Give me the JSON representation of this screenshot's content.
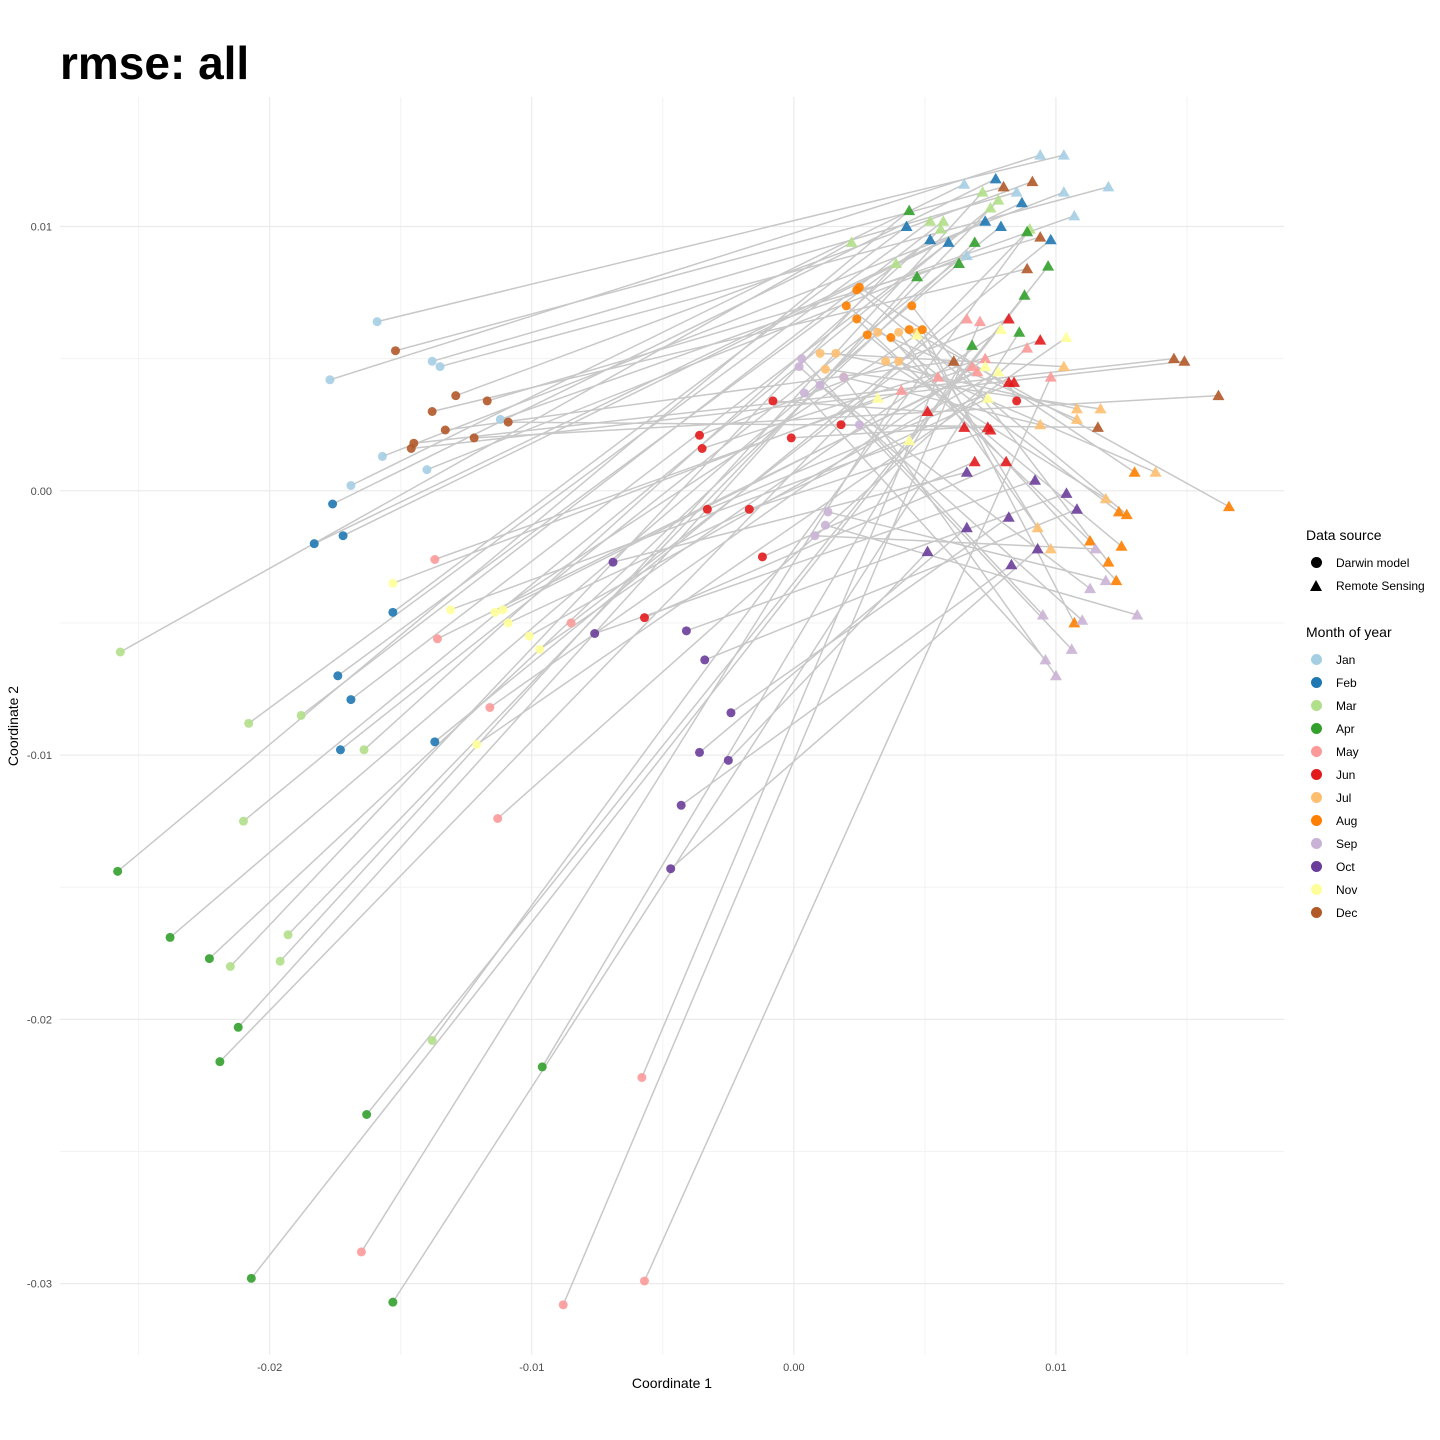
{
  "chart_data": {
    "type": "scatter",
    "title": "rmse: all",
    "xlabel": "Coordinate 1",
    "ylabel": "Coordinate 2",
    "xlim": [
      -0.028,
      0.0187
    ],
    "ylim": [
      -0.0327,
      0.0149
    ],
    "x_ticks": [
      -0.02,
      -0.01,
      0.0,
      0.01
    ],
    "x_tick_labels": [
      "-0.02",
      "-0.01",
      "0.00",
      "0.01"
    ],
    "y_ticks": [
      -0.03,
      -0.02,
      -0.01,
      0.0,
      0.01
    ],
    "y_tick_labels": [
      "-0.03",
      "-0.02",
      "-0.01",
      "0.00",
      "0.01"
    ],
    "grid": true,
    "legend_position": "right",
    "connector_color": "#c8c8c8",
    "shape_legend": {
      "title": "Data source",
      "entries": [
        {
          "label": "Darwin model",
          "shape": "circle"
        },
        {
          "label": "Remote Sensing",
          "shape": "triangle"
        }
      ]
    },
    "color_legend": {
      "title": "Month of year",
      "entries": [
        {
          "label": "Jan",
          "color": "#a6cee3"
        },
        {
          "label": "Feb",
          "color": "#1f78b4"
        },
        {
          "label": "Mar",
          "color": "#b2df8a"
        },
        {
          "label": "Apr",
          "color": "#33a02c"
        },
        {
          "label": "May",
          "color": "#fb9a99"
        },
        {
          "label": "Jun",
          "color": "#e31a1c"
        },
        {
          "label": "Jul",
          "color": "#fdbf6f"
        },
        {
          "label": "Aug",
          "color": "#ff7f00"
        },
        {
          "label": "Sep",
          "color": "#cab2d6"
        },
        {
          "label": "Oct",
          "color": "#6a3d9a"
        },
        {
          "label": "Nov",
          "color": "#ffff99"
        },
        {
          "label": "Dec",
          "color": "#b15928"
        }
      ]
    },
    "pairs": [
      {
        "month": "Jan",
        "model": [
          -0.0177,
          0.0042
        ],
        "rs": [
          0.0094,
          0.0127
        ]
      },
      {
        "month": "Jan",
        "model": [
          -0.0159,
          0.0064
        ],
        "rs": [
          0.0103,
          0.0127
        ]
      },
      {
        "month": "Jan",
        "model": [
          -0.0138,
          0.0049
        ],
        "rs": [
          0.0085,
          0.0113
        ]
      },
      {
        "month": "Jan",
        "model": [
          -0.0135,
          0.0047
        ],
        "rs": [
          0.012,
          0.0115
        ]
      },
      {
        "month": "Jan",
        "model": [
          -0.0112,
          0.0027
        ],
        "rs": [
          0.0107,
          0.0104
        ]
      },
      {
        "month": "Jan",
        "model": [
          -0.0169,
          0.0002
        ],
        "rs": [
          0.0065,
          0.0116
        ]
      },
      {
        "month": "Jan",
        "model": [
          -0.0157,
          0.0013
        ],
        "rs": [
          0.0103,
          0.0113
        ]
      },
      {
        "month": "Jan",
        "model": [
          -0.014,
          0.0008
        ],
        "rs": [
          0.0066,
          0.0089
        ]
      },
      {
        "month": "Feb",
        "model": [
          -0.0176,
          -0.0005
        ],
        "rs": [
          0.0077,
          0.0118
        ]
      },
      {
        "month": "Feb",
        "model": [
          -0.0183,
          -0.002
        ],
        "rs": [
          0.0087,
          0.0109
        ]
      },
      {
        "month": "Feb",
        "model": [
          -0.0172,
          -0.0017
        ],
        "rs": [
          0.0073,
          0.0102
        ]
      },
      {
        "month": "Feb",
        "model": [
          -0.0153,
          -0.0046
        ],
        "rs": [
          0.0043,
          0.01
        ]
      },
      {
        "month": "Feb",
        "model": [
          -0.0174,
          -0.007
        ],
        "rs": [
          0.0052,
          0.0095
        ]
      },
      {
        "month": "Feb",
        "model": [
          -0.0169,
          -0.0079
        ],
        "rs": [
          0.0059,
          0.0094
        ]
      },
      {
        "month": "Feb",
        "model": [
          -0.0173,
          -0.0098
        ],
        "rs": [
          0.0079,
          0.01
        ]
      },
      {
        "month": "Feb",
        "model": [
          -0.0137,
          -0.0095
        ],
        "rs": [
          0.0098,
          0.0095
        ]
      },
      {
        "month": "Mar",
        "model": [
          -0.0257,
          -0.0061
        ],
        "rs": [
          0.0022,
          0.0094
        ]
      },
      {
        "month": "Mar",
        "model": [
          -0.0208,
          -0.0088
        ],
        "rs": [
          0.0052,
          0.0102
        ]
      },
      {
        "month": "Mar",
        "model": [
          -0.0188,
          -0.0085
        ],
        "rs": [
          0.0057,
          0.0102
        ]
      },
      {
        "month": "Mar",
        "model": [
          -0.0164,
          -0.0098
        ],
        "rs": [
          0.0056,
          0.0099
        ]
      },
      {
        "month": "Mar",
        "model": [
          -0.021,
          -0.0125
        ],
        "rs": [
          0.0075,
          0.0107
        ]
      },
      {
        "month": "Mar",
        "model": [
          -0.0193,
          -0.0168
        ],
        "rs": [
          0.0078,
          0.011
        ]
      },
      {
        "month": "Mar",
        "model": [
          -0.0215,
          -0.018
        ],
        "rs": [
          0.0039,
          0.0086
        ]
      },
      {
        "month": "Mar",
        "model": [
          -0.0196,
          -0.0178
        ],
        "rs": [
          0.0072,
          0.0113
        ]
      },
      {
        "month": "Mar",
        "model": [
          -0.0138,
          -0.0208
        ],
        "rs": [
          0.009,
          0.0099
        ]
      },
      {
        "month": "Apr",
        "model": [
          -0.0258,
          -0.0144
        ],
        "rs": [
          0.0044,
          0.0106
        ]
      },
      {
        "month": "Apr",
        "model": [
          -0.0238,
          -0.0169
        ],
        "rs": [
          0.0063,
          0.0086
        ]
      },
      {
        "month": "Apr",
        "model": [
          -0.0223,
          -0.0177
        ],
        "rs": [
          0.0069,
          0.0094
        ]
      },
      {
        "month": "Apr",
        "model": [
          -0.0212,
          -0.0203
        ],
        "rs": [
          0.0047,
          0.0081
        ]
      },
      {
        "month": "Apr",
        "model": [
          -0.0219,
          -0.0216
        ],
        "rs": [
          0.0089,
          0.0098
        ]
      },
      {
        "month": "Apr",
        "model": [
          -0.0163,
          -0.0236
        ],
        "rs": [
          0.0088,
          0.0074
        ]
      },
      {
        "month": "Apr",
        "model": [
          -0.0207,
          -0.0298
        ],
        "rs": [
          0.0097,
          0.0085
        ]
      },
      {
        "month": "Apr",
        "model": [
          -0.0153,
          -0.0307
        ],
        "rs": [
          0.0086,
          0.006
        ]
      },
      {
        "month": "Apr",
        "model": [
          -0.0096,
          -0.0218
        ],
        "rs": [
          0.0068,
          0.0055
        ]
      },
      {
        "month": "May",
        "model": [
          -0.0137,
          -0.0026
        ],
        "rs": [
          0.0068,
          0.0047
        ]
      },
      {
        "month": "May",
        "model": [
          -0.0136,
          -0.0056
        ],
        "rs": [
          0.007,
          0.0045
        ]
      },
      {
        "month": "May",
        "model": [
          -0.0116,
          -0.0082
        ],
        "rs": [
          0.0073,
          0.005
        ]
      },
      {
        "month": "May",
        "model": [
          -0.0113,
          -0.0124
        ],
        "rs": [
          0.0089,
          0.0054
        ]
      },
      {
        "month": "May",
        "model": [
          -0.0085,
          -0.005
        ],
        "rs": [
          0.0066,
          0.0065
        ]
      },
      {
        "month": "May",
        "model": [
          -0.0058,
          -0.0222
        ],
        "rs": [
          0.0055,
          0.0043
        ]
      },
      {
        "month": "May",
        "model": [
          -0.0165,
          -0.0288
        ],
        "rs": [
          0.0041,
          0.0038
        ]
      },
      {
        "month": "May",
        "model": [
          -0.0057,
          -0.0299
        ],
        "rs": [
          0.0098,
          0.0043
        ]
      },
      {
        "month": "May",
        "model": [
          -0.0088,
          -0.0308
        ],
        "rs": [
          0.0071,
          0.0064
        ]
      },
      {
        "month": "Jun",
        "model": [
          -0.0036,
          0.0021
        ],
        "rs": [
          0.0082,
          0.0065
        ]
      },
      {
        "month": "Jun",
        "model": [
          -0.0035,
          0.0016
        ],
        "rs": [
          0.0094,
          0.0057
        ]
      },
      {
        "month": "Jun",
        "model": [
          -0.0008,
          0.0034
        ],
        "rs": [
          0.0051,
          0.003
        ]
      },
      {
        "month": "Jun",
        "model": [
          -0.0001,
          0.002
        ],
        "rs": [
          0.0065,
          0.0024
        ]
      },
      {
        "month": "Jun",
        "model": [
          0.0018,
          0.0025
        ],
        "rs": [
          0.0074,
          0.0024
        ]
      },
      {
        "month": "Jun",
        "model": [
          -0.0033,
          -0.0007
        ],
        "rs": [
          0.0084,
          0.0041
        ]
      },
      {
        "month": "Jun",
        "model": [
          -0.0017,
          -0.0007
        ],
        "rs": [
          0.0075,
          0.0023
        ]
      },
      {
        "month": "Jun",
        "model": [
          -0.0012,
          -0.0025
        ],
        "rs": [
          0.0069,
          0.0011
        ]
      },
      {
        "month": "Jun",
        "model": [
          -0.0057,
          -0.0048
        ],
        "rs": [
          0.0081,
          0.0011
        ]
      },
      {
        "month": "Jun",
        "model": [
          0.0085,
          0.0034
        ],
        "rs": [
          0.0082,
          0.0041
        ]
      },
      {
        "month": "Jul",
        "model": [
          0.001,
          0.0052
        ],
        "rs": [
          0.0103,
          0.0047
        ]
      },
      {
        "month": "Jul",
        "model": [
          0.0016,
          0.0052
        ],
        "rs": [
          0.0108,
          0.0031
        ]
      },
      {
        "month": "Jul",
        "model": [
          0.0012,
          0.0046
        ],
        "rs": [
          0.0117,
          0.0031
        ]
      },
      {
        "month": "Jul",
        "model": [
          0.0019,
          0.0043
        ],
        "rs": [
          0.0094,
          0.0025
        ]
      },
      {
        "month": "Jul",
        "model": [
          0.0032,
          0.006
        ],
        "rs": [
          0.0108,
          0.0027
        ]
      },
      {
        "month": "Jul",
        "model": [
          0.0035,
          0.0049
        ],
        "rs": [
          0.0119,
          -0.0003
        ]
      },
      {
        "month": "Jul",
        "model": [
          0.004,
          0.0049
        ],
        "rs": [
          0.0138,
          0.0007
        ]
      },
      {
        "month": "Jul",
        "model": [
          0.004,
          0.006
        ],
        "rs": [
          0.0093,
          -0.0014
        ]
      },
      {
        "month": "Jul",
        "model": [
          0.0047,
          0.006
        ],
        "rs": [
          0.0098,
          -0.0022
        ]
      },
      {
        "month": "Aug",
        "model": [
          0.002,
          0.007
        ],
        "rs": [
          0.0124,
          -0.0008
        ]
      },
      {
        "month": "Aug",
        "model": [
          0.0024,
          0.0076
        ],
        "rs": [
          0.0127,
          -0.0009
        ]
      },
      {
        "month": "Aug",
        "model": [
          0.0025,
          0.0077
        ],
        "rs": [
          0.013,
          0.0007
        ]
      },
      {
        "month": "Aug",
        "model": [
          0.0024,
          0.0065
        ],
        "rs": [
          0.0113,
          -0.0019
        ]
      },
      {
        "month": "Aug",
        "model": [
          0.0028,
          0.0059
        ],
        "rs": [
          0.0125,
          -0.0021
        ]
      },
      {
        "month": "Aug",
        "model": [
          0.0037,
          0.0058
        ],
        "rs": [
          0.0123,
          -0.0034
        ]
      },
      {
        "month": "Aug",
        "model": [
          0.0045,
          0.007
        ],
        "rs": [
          0.012,
          -0.0027
        ]
      },
      {
        "month": "Aug",
        "model": [
          0.0049,
          0.0061
        ],
        "rs": [
          0.0107,
          -0.005
        ]
      },
      {
        "month": "Aug",
        "model": [
          0.0044,
          0.0061
        ],
        "rs": [
          0.0166,
          -0.0006
        ]
      },
      {
        "month": "Sep",
        "model": [
          0.0003,
          0.005
        ],
        "rs": [
          0.0095,
          -0.0047
        ]
      },
      {
        "month": "Sep",
        "model": [
          0.0002,
          0.0047
        ],
        "rs": [
          0.011,
          -0.0049
        ]
      },
      {
        "month": "Sep",
        "model": [
          0.001,
          0.004
        ],
        "rs": [
          0.0113,
          -0.0037
        ]
      },
      {
        "month": "Sep",
        "model": [
          0.0004,
          0.0037
        ],
        "rs": [
          0.0096,
          -0.0064
        ]
      },
      {
        "month": "Sep",
        "model": [
          0.0019,
          0.0043
        ],
        "rs": [
          0.01,
          -0.007
        ]
      },
      {
        "month": "Sep",
        "model": [
          0.0025,
          0.0025
        ],
        "rs": [
          0.0106,
          -0.006
        ]
      },
      {
        "month": "Sep",
        "model": [
          0.0013,
          -0.0008
        ],
        "rs": [
          0.0119,
          -0.0034
        ]
      },
      {
        "month": "Sep",
        "model": [
          0.0012,
          -0.0013
        ],
        "rs": [
          0.0131,
          -0.0047
        ]
      },
      {
        "month": "Sep",
        "model": [
          0.0008,
          -0.0017
        ],
        "rs": [
          0.0115,
          -0.0022
        ]
      },
      {
        "month": "Oct",
        "model": [
          -0.0069,
          -0.0027
        ],
        "rs": [
          0.0066,
          0.0007
        ]
      },
      {
        "month": "Oct",
        "model": [
          -0.0076,
          -0.0054
        ],
        "rs": [
          0.0092,
          0.0004
        ]
      },
      {
        "month": "Oct",
        "model": [
          -0.0041,
          -0.0053
        ],
        "rs": [
          0.0104,
          -0.0001
        ]
      },
      {
        "month": "Oct",
        "model": [
          -0.0034,
          -0.0064
        ],
        "rs": [
          0.0108,
          -0.0007
        ]
      },
      {
        "month": "Oct",
        "model": [
          -0.0024,
          -0.0084
        ],
        "rs": [
          0.0082,
          -0.001
        ]
      },
      {
        "month": "Oct",
        "model": [
          -0.0036,
          -0.0099
        ],
        "rs": [
          0.0066,
          -0.0014
        ]
      },
      {
        "month": "Oct",
        "model": [
          -0.0025,
          -0.0102
        ],
        "rs": [
          0.0051,
          -0.0023
        ]
      },
      {
        "month": "Oct",
        "model": [
          -0.0043,
          -0.0119
        ],
        "rs": [
          0.0083,
          -0.0028
        ]
      },
      {
        "month": "Oct",
        "model": [
          -0.0047,
          -0.0143
        ],
        "rs": [
          0.0093,
          -0.0022
        ]
      },
      {
        "month": "Nov",
        "model": [
          -0.0153,
          -0.0035
        ],
        "rs": [
          0.0032,
          0.0035
        ]
      },
      {
        "month": "Nov",
        "model": [
          -0.0131,
          -0.0045
        ],
        "rs": [
          0.0044,
          0.0019
        ]
      },
      {
        "month": "Nov",
        "model": [
          -0.0114,
          -0.0046
        ],
        "rs": [
          0.0047,
          0.0059
        ]
      },
      {
        "month": "Nov",
        "model": [
          -0.0111,
          -0.0045
        ],
        "rs": [
          0.0073,
          0.0047
        ]
      },
      {
        "month": "Nov",
        "model": [
          -0.0109,
          -0.005
        ],
        "rs": [
          0.0074,
          0.0035
        ]
      },
      {
        "month": "Nov",
        "model": [
          -0.0101,
          -0.0055
        ],
        "rs": [
          0.0078,
          0.0045
        ]
      },
      {
        "month": "Nov",
        "model": [
          -0.0097,
          -0.006
        ],
        "rs": [
          0.0079,
          0.0061
        ]
      },
      {
        "month": "Nov",
        "model": [
          -0.0121,
          -0.0096
        ],
        "rs": [
          0.0104,
          0.0058
        ]
      },
      {
        "month": "Dec",
        "model": [
          -0.0152,
          0.0053
        ],
        "rs": [
          0.008,
          0.0115
        ]
      },
      {
        "month": "Dec",
        "model": [
          -0.0138,
          0.003
        ],
        "rs": [
          0.0089,
          0.0084
        ]
      },
      {
        "month": "Dec",
        "model": [
          -0.0129,
          0.0036
        ],
        "rs": [
          0.0091,
          0.0117
        ]
      },
      {
        "month": "Dec",
        "model": [
          -0.0117,
          0.0034
        ],
        "rs": [
          0.0094,
          0.0096
        ]
      },
      {
        "month": "Dec",
        "model": [
          -0.0133,
          0.0023
        ],
        "rs": [
          0.0061,
          0.0049
        ]
      },
      {
        "month": "Dec",
        "model": [
          -0.0145,
          0.0018
        ],
        "rs": [
          0.0145,
          0.005
        ]
      },
      {
        "month": "Dec",
        "model": [
          -0.0146,
          0.0016
        ],
        "rs": [
          0.0149,
          0.0049
        ]
      },
      {
        "month": "Dec",
        "model": [
          -0.0122,
          0.002
        ],
        "rs": [
          0.0162,
          0.0036
        ]
      },
      {
        "month": "Dec",
        "model": [
          -0.0109,
          0.0026
        ],
        "rs": [
          0.0116,
          0.0024
        ]
      }
    ]
  }
}
